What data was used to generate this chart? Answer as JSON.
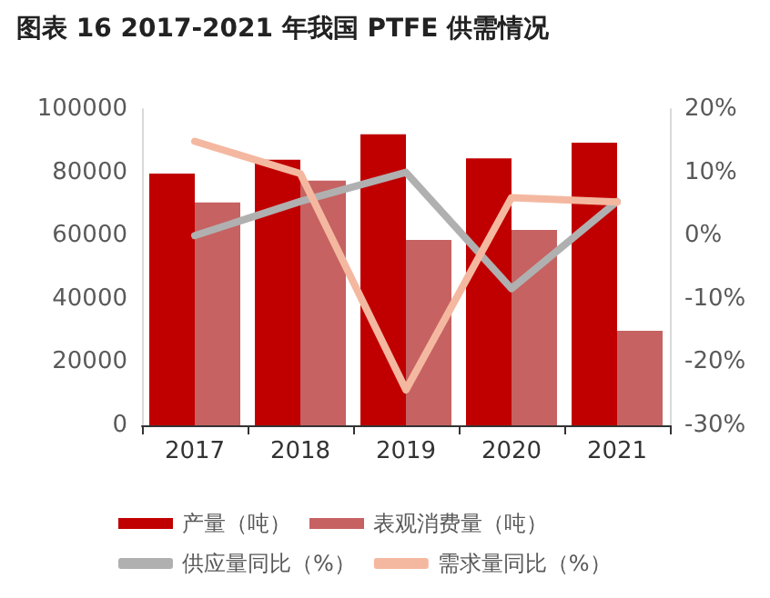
{
  "chart_data": {
    "type": "bar",
    "title": "图表 16 2017-2021 年我国 PTFE 供需情况",
    "categories": [
      "2017",
      "2018",
      "2019",
      "2020",
      "2021"
    ],
    "series": [
      {
        "name": "产量（吨）",
        "color": "#c00000",
        "values": [
          79600,
          84000,
          92000,
          84400,
          89400
        ]
      },
      {
        "name": "表观消费量（吨）",
        "color": "#c66262",
        "values": [
          70500,
          77400,
          58600,
          61800,
          29900
        ]
      },
      {
        "name": "供应量同比（%）",
        "type": "line",
        "axis": "y2",
        "color": "#b0b0b0",
        "values": [
          0,
          5.4,
          10,
          -8.4,
          5.4
        ]
      },
      {
        "name": "需求量同比（%）",
        "type": "line",
        "axis": "y2",
        "color": "#f4b8a0",
        "values": [
          14.9,
          9.8,
          -24.4,
          6,
          5.3
        ]
      }
    ],
    "ylim": [
      0,
      100000
    ],
    "yticks": [
      0,
      20000,
      40000,
      60000,
      80000,
      100000
    ],
    "y2lim": [
      -30,
      20
    ],
    "y2ticks": [
      {
        "value": -30,
        "label": "-30%"
      },
      {
        "value": -20,
        "label": "-20%"
      },
      {
        "value": -10,
        "label": "-10%"
      },
      {
        "value": 0,
        "label": "0%"
      },
      {
        "value": 10,
        "label": "10%"
      },
      {
        "value": 20,
        "label": "20%"
      }
    ],
    "grid": false,
    "legend": "bottom",
    "marker": "none",
    "line_style": "solid"
  }
}
